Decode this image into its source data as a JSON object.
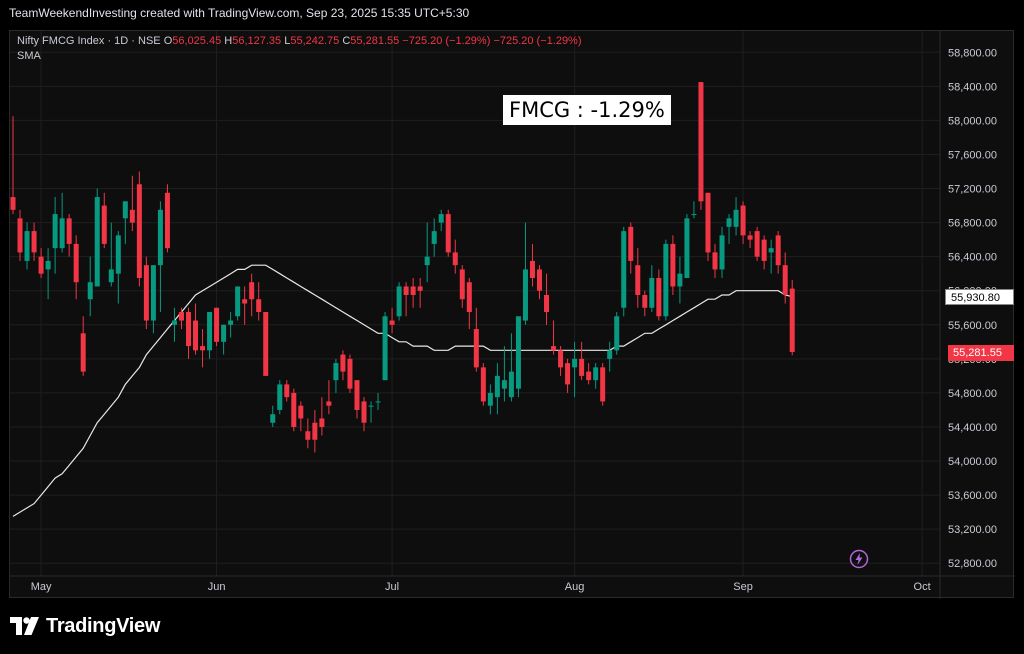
{
  "header": {
    "credit": "TeamWeekendInvesting created with TradingView.com, Sep 23, 2025 15:35 UTC+5:30"
  },
  "legend": {
    "symbol": "Nifty FMCG Index · 1D · NSE",
    "o_label": "O",
    "o_value": "56,025.45",
    "h_label": "H",
    "h_value": "56,127.35",
    "l_label": "L",
    "l_value": "55,242.75",
    "c_label": "C",
    "c_value": "55,281.55",
    "change": "−725.20 (−1.29%)",
    "change2": "−725.20 (−1.29%)",
    "indicator": "SMA"
  },
  "annotation": "FMCG : -1.29%",
  "price_tags": {
    "sma": "55,930.80",
    "last": "55,281.55"
  },
  "logo": {
    "text": "TradingView",
    "icon": "tradingview-logo-icon"
  },
  "icons": {
    "flash": "flash-icon"
  },
  "colors": {
    "up": "#089981",
    "down": "#f23645",
    "sma": "#e8e8e8",
    "grid": "#1f1f1f"
  },
  "chart_data": {
    "type": "candlestick",
    "y_ticks": [
      52800,
      53200,
      53600,
      54000,
      54400,
      54800,
      55200,
      55600,
      56000,
      56400,
      56800,
      57200,
      57600,
      58000,
      58400,
      58800
    ],
    "y_tick_labels": [
      "52,800.00",
      "53,200.00",
      "53,600.00",
      "54,000.00",
      "54,400.00",
      "54,800.00",
      "55,200.00",
      "55,600.00",
      "56,000.00",
      "56,400.00",
      "56,800.00",
      "57,200.00",
      "57,600.00",
      "58,000.00",
      "58,400.00",
      "58,800.00"
    ],
    "x_labels": [
      "May",
      "Jun",
      "Jul",
      "Aug",
      "Sep",
      "Oct"
    ],
    "x_label_index": [
      4,
      29,
      54,
      80,
      104,
      129.5
    ],
    "ylim": [
      52650,
      59050
    ],
    "candles": [
      [
        57100,
        58050,
        56900,
        56950
      ],
      [
        56850,
        56950,
        56350,
        56450
      ],
      [
        56350,
        56800,
        56250,
        56700
      ],
      [
        56700,
        56800,
        56350,
        56450
      ],
      [
        56400,
        56500,
        56150,
        56200
      ],
      [
        56250,
        56500,
        55900,
        56350
      ],
      [
        56500,
        57100,
        56200,
        56900
      ],
      [
        56500,
        57150,
        56450,
        56850
      ],
      [
        56850,
        56900,
        56400,
        56550
      ],
      [
        56550,
        56650,
        55900,
        56100
      ],
      [
        55500,
        55700,
        55000,
        55050
      ],
      [
        55900,
        56400,
        55700,
        56100
      ],
      [
        56050,
        57200,
        56050,
        57100
      ],
      [
        57000,
        57150,
        56500,
        56550
      ],
      [
        56100,
        56800,
        56050,
        56250
      ],
      [
        56200,
        56700,
        55850,
        56650
      ],
      [
        56850,
        57050,
        56550,
        57050
      ],
      [
        56950,
        57350,
        56700,
        56800
      ],
      [
        57250,
        57400,
        56050,
        56150
      ],
      [
        56300,
        56400,
        55550,
        55650
      ],
      [
        55650,
        56300,
        55500,
        56300
      ],
      [
        56300,
        57050,
        55750,
        56950
      ],
      [
        57150,
        57250,
        56450,
        56500
      ],
      [
        55600,
        55800,
        55400,
        55650
      ],
      [
        55750,
        55800,
        55550,
        55650
      ],
      [
        55750,
        55800,
        55200,
        55350
      ],
      [
        55650,
        55850,
        55250,
        55300
      ],
      [
        55350,
        55550,
        55100,
        55300
      ],
      [
        55300,
        55750,
        55200,
        55750
      ],
      [
        55800,
        55800,
        55350,
        55400
      ],
      [
        55400,
        55600,
        55250,
        55600
      ],
      [
        55600,
        55750,
        55450,
        55650
      ],
      [
        55700,
        56050,
        55650,
        56050
      ],
      [
        55900,
        56050,
        55600,
        55850
      ],
      [
        56100,
        56200,
        55700,
        55900
      ],
      [
        55900,
        56100,
        55650,
        55750
      ],
      [
        55750,
        55750,
        55000,
        55000
      ],
      [
        54450,
        54650,
        54400,
        54550
      ],
      [
        54600,
        54950,
        54550,
        54900
      ],
      [
        54900,
        54950,
        54700,
        54750
      ],
      [
        54800,
        54850,
        54350,
        54400
      ],
      [
        54650,
        54700,
        54350,
        54500
      ],
      [
        54350,
        54500,
        54150,
        54250
      ],
      [
        54450,
        54600,
        54100,
        54250
      ],
      [
        54500,
        54750,
        54300,
        54400
      ],
      [
        54700,
        54950,
        54550,
        54650
      ],
      [
        54950,
        55200,
        54800,
        55150
      ],
      [
        55250,
        55300,
        54950,
        55050
      ],
      [
        55200,
        55250,
        54800,
        54850
      ],
      [
        54950,
        54950,
        54500,
        54600
      ],
      [
        54700,
        54750,
        54350,
        54450
      ],
      [
        54650,
        54700,
        54450,
        54650
      ],
      [
        54700,
        54800,
        54600,
        54700
      ],
      [
        54950,
        55750,
        54950,
        55700
      ],
      [
        55650,
        55800,
        55500,
        55600
      ],
      [
        55700,
        56100,
        55650,
        56050
      ],
      [
        56050,
        56100,
        55700,
        55950
      ],
      [
        56050,
        56150,
        55800,
        55950
      ],
      [
        56050,
        56150,
        55800,
        56000
      ],
      [
        56300,
        56800,
        56100,
        56400
      ],
      [
        56550,
        56850,
        56400,
        56700
      ],
      [
        56800,
        56950,
        56700,
        56900
      ],
      [
        56900,
        56950,
        56400,
        56450
      ],
      [
        56450,
        56600,
        56200,
        56300
      ],
      [
        56250,
        56300,
        55800,
        55900
      ],
      [
        56100,
        56150,
        55550,
        55750
      ],
      [
        55550,
        55800,
        55050,
        55100
      ],
      [
        55100,
        55150,
        54650,
        54700
      ],
      [
        54650,
        54900,
        54550,
        54800
      ],
      [
        54750,
        55150,
        54550,
        55000
      ],
      [
        54850,
        55350,
        54700,
        54950
      ],
      [
        54750,
        55500,
        54700,
        55050
      ],
      [
        54850,
        55700,
        54750,
        55700
      ],
      [
        55650,
        56800,
        55600,
        56250
      ],
      [
        56350,
        56550,
        56050,
        56150
      ],
      [
        56250,
        56300,
        55900,
        56000
      ],
      [
        55950,
        56200,
        55600,
        55750
      ],
      [
        55350,
        55650,
        55250,
        55300
      ],
      [
        55300,
        55350,
        55000,
        55100
      ],
      [
        55150,
        55200,
        54800,
        54900
      ],
      [
        55100,
        55400,
        54750,
        55200
      ],
      [
        55200,
        55400,
        54950,
        55000
      ],
      [
        55050,
        55150,
        54900,
        54950
      ],
      [
        54950,
        55150,
        54850,
        55100
      ],
      [
        55100,
        55150,
        54650,
        54700
      ],
      [
        55200,
        55400,
        55050,
        55300
      ],
      [
        55300,
        55750,
        55250,
        55700
      ],
      [
        55800,
        56750,
        55700,
        56700
      ],
      [
        56750,
        56800,
        56200,
        56350
      ],
      [
        56300,
        56500,
        55800,
        55950
      ],
      [
        55950,
        56000,
        55700,
        55800
      ],
      [
        55800,
        56300,
        55750,
        56150
      ],
      [
        56150,
        56250,
        55650,
        55700
      ],
      [
        55700,
        56600,
        55650,
        56550
      ],
      [
        56550,
        56650,
        55950,
        56050
      ],
      [
        56050,
        56400,
        55850,
        56200
      ],
      [
        56150,
        56900,
        56150,
        56850
      ],
      [
        56900,
        57050,
        56850,
        56900
      ],
      [
        58450,
        58450,
        56950,
        57050
      ],
      [
        57150,
        57150,
        56350,
        56450
      ],
      [
        56450,
        56550,
        56150,
        56250
      ],
      [
        56250,
        56750,
        56150,
        56650
      ],
      [
        56750,
        56900,
        56550,
        56850
      ],
      [
        56750,
        57100,
        56650,
        56950
      ],
      [
        57000,
        57050,
        56550,
        56650
      ],
      [
        56650,
        56700,
        56500,
        56600
      ],
      [
        56700,
        56750,
        56350,
        56400
      ],
      [
        56600,
        56650,
        56250,
        56350
      ],
      [
        56450,
        56600,
        56200,
        56500
      ],
      [
        56650,
        56700,
        56200,
        56300
      ],
      [
        56300,
        56450,
        55850,
        55950
      ],
      [
        56025,
        56127,
        55242,
        55281
      ]
    ],
    "sma": [
      53350,
      53400,
      53450,
      53500,
      53600,
      53700,
      53800,
      53850,
      53950,
      54050,
      54150,
      54300,
      54450,
      54550,
      54650,
      54750,
      54900,
      55000,
      55100,
      55250,
      55350,
      55450,
      55550,
      55650,
      55750,
      55850,
      55950,
      56000,
      56050,
      56100,
      56150,
      56200,
      56250,
      56250,
      56300,
      56300,
      56300,
      56250,
      56200,
      56150,
      56100,
      56050,
      56000,
      55950,
      55900,
      55850,
      55800,
      55750,
      55700,
      55650,
      55600,
      55550,
      55500,
      55500,
      55450,
      55400,
      55400,
      55350,
      55350,
      55350,
      55300,
      55300,
      55300,
      55350,
      55350,
      55350,
      55350,
      55350,
      55300,
      55300,
      55300,
      55300,
      55300,
      55300,
      55300,
      55300,
      55300,
      55300,
      55300,
      55300,
      55300,
      55300,
      55300,
      55300,
      55300,
      55300,
      55350,
      55350,
      55400,
      55450,
      55500,
      55500,
      55550,
      55600,
      55650,
      55700,
      55750,
      55800,
      55850,
      55900,
      55900,
      55950,
      55950,
      56000,
      56000,
      56000,
      56000,
      56000,
      56000,
      56000,
      55950,
      55930
    ]
  }
}
